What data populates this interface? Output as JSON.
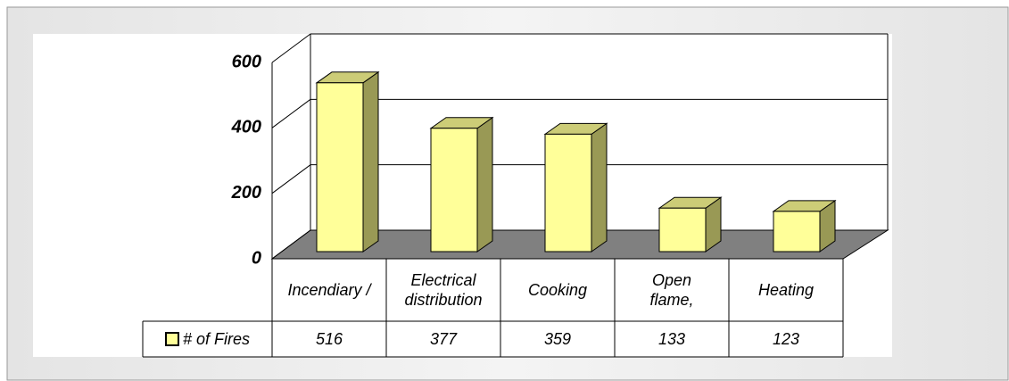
{
  "chart_data": {
    "type": "bar",
    "categories": [
      "Incendiary /",
      "Electrical distribution",
      "Cooking",
      "Open flame,",
      "Heating"
    ],
    "series": [
      {
        "name": "# of Fires",
        "color": "#ffff99",
        "values": [
          516,
          377,
          359,
          133,
          123
        ]
      }
    ],
    "ylim": [
      0,
      600
    ],
    "yticks": [
      0,
      200,
      400,
      600
    ],
    "grid": true
  }
}
